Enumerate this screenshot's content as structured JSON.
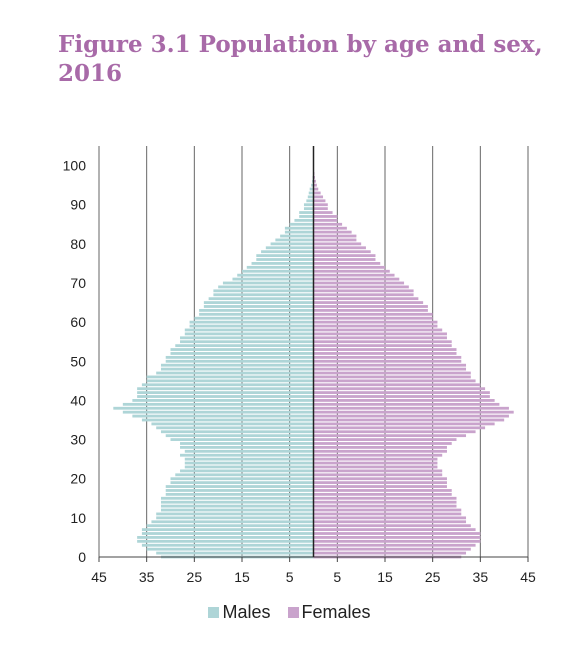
{
  "title_line1": "Figure 3.1 Population by age and sex,",
  "title_line2": "2016",
  "chart_data": {
    "type": "bar",
    "orientation": "horizontal",
    "style": "population-pyramid",
    "title": "Figure 3.1 Population by age and sex, 2016",
    "xlim": [
      -45,
      45
    ],
    "ylim": [
      0,
      105
    ],
    "x_ticks": [
      "45",
      "35",
      "25",
      "15",
      "5",
      "5",
      "15",
      "25",
      "35",
      "45"
    ],
    "x_tick_values": [
      -45,
      -35,
      -25,
      -15,
      -5,
      5,
      15,
      25,
      35,
      45
    ],
    "y_ticks": [
      "0",
      "10",
      "20",
      "30",
      "40",
      "50",
      "60",
      "70",
      "80",
      "90",
      "100"
    ],
    "y_tick_values": [
      0,
      10,
      20,
      30,
      40,
      50,
      60,
      70,
      80,
      90,
      100
    ],
    "grid": "vertical",
    "legend_position": "bottom",
    "ages": [
      0,
      1,
      2,
      3,
      4,
      5,
      6,
      7,
      8,
      9,
      10,
      11,
      12,
      13,
      14,
      15,
      16,
      17,
      18,
      19,
      20,
      21,
      22,
      23,
      24,
      25,
      26,
      27,
      28,
      29,
      30,
      31,
      32,
      33,
      34,
      35,
      36,
      37,
      38,
      39,
      40,
      41,
      42,
      43,
      44,
      45,
      46,
      47,
      48,
      49,
      50,
      51,
      52,
      53,
      54,
      55,
      56,
      57,
      58,
      59,
      60,
      61,
      62,
      63,
      64,
      65,
      66,
      67,
      68,
      69,
      70,
      71,
      72,
      73,
      74,
      75,
      76,
      77,
      78,
      79,
      80,
      81,
      82,
      83,
      84,
      85,
      86,
      87,
      88,
      89,
      90,
      91,
      92,
      93,
      94,
      95,
      96,
      97,
      98,
      99,
      100
    ],
    "series": [
      {
        "name": "Males",
        "color": "#aed5d7",
        "values": [
          32,
          33,
          35,
          36,
          37,
          37,
          36,
          36,
          35,
          34,
          33,
          33,
          32,
          32,
          32,
          32,
          31,
          31,
          31,
          30,
          30,
          29,
          28,
          27,
          27,
          27,
          28,
          27,
          28,
          28,
          30,
          31,
          32,
          33,
          34,
          36,
          38,
          40,
          42,
          40,
          38,
          37,
          37,
          37,
          36,
          35,
          35,
          33,
          32,
          32,
          31,
          31,
          30,
          30,
          29,
          28,
          28,
          27,
          27,
          26,
          26,
          25,
          24,
          24,
          23,
          23,
          22,
          21,
          21,
          20,
          19,
          17,
          16,
          15,
          14,
          13,
          12,
          12,
          11,
          10,
          9,
          8,
          7,
          6,
          6,
          5,
          4,
          3,
          3,
          2,
          2,
          1.5,
          1.2,
          1,
          0.8,
          0.5,
          0.3,
          0.2,
          0.1,
          0.1,
          0
        ]
      },
      {
        "name": "Females",
        "color": "#c9a3cc",
        "values": [
          31,
          32,
          33,
          34,
          35,
          35,
          35,
          34,
          33,
          32,
          32,
          31,
          31,
          30,
          30,
          30,
          29,
          29,
          28,
          28,
          28,
          27,
          27,
          26,
          26,
          26,
          27,
          28,
          28,
          29,
          30,
          32,
          34,
          36,
          38,
          40,
          41,
          42,
          41,
          39,
          38,
          37,
          37,
          36,
          35,
          34,
          33,
          33,
          32,
          32,
          31,
          31,
          30,
          30,
          29,
          29,
          28,
          28,
          27,
          26,
          26,
          25,
          25,
          24,
          24,
          23,
          22,
          21,
          21,
          20,
          19,
          18,
          17,
          16,
          15,
          14,
          13,
          13,
          12,
          11,
          10,
          9,
          9,
          8,
          7,
          6,
          5,
          5,
          4,
          3,
          3,
          2.5,
          2,
          1.5,
          1,
          0.7,
          0.5,
          0.3,
          0.2,
          0.1,
          0
        ]
      }
    ]
  }
}
